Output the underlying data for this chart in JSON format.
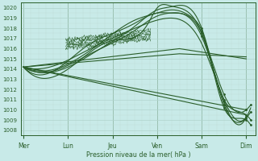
{
  "bg_color": "#c8eae8",
  "grid_major_color": "#b0d4cc",
  "grid_minor_color": "#c0dcd8",
  "line_color": "#2a5e2a",
  "xlabel": "Pression niveau de la mer( hPa )",
  "ylim": [
    1007.5,
    1020.5
  ],
  "xlim": [
    -0.05,
    5.2
  ],
  "yticks": [
    1008,
    1009,
    1010,
    1011,
    1012,
    1013,
    1014,
    1015,
    1016,
    1017,
    1018,
    1019,
    1020
  ],
  "day_positions": [
    0,
    1,
    2,
    3,
    4,
    5
  ],
  "day_labels": [
    "Mer",
    "Lun",
    "Jeu",
    "Ven",
    "Sam",
    "Dim"
  ],
  "ensemble_lines": [
    [
      0.0,
      1014.2,
      1.0,
      1014.0,
      2.0,
      1016.8,
      2.8,
      1018.5,
      3.0,
      1020.0,
      3.3,
      1020.2,
      4.0,
      1017.5,
      4.5,
      1011.0,
      5.0,
      1009.5,
      5.1,
      1009.0
    ],
    [
      0.0,
      1014.2,
      1.0,
      1014.2,
      1.8,
      1016.2,
      2.5,
      1018.2,
      3.0,
      1019.8,
      3.3,
      1020.1,
      4.0,
      1018.0,
      4.5,
      1010.5,
      5.0,
      1009.2,
      5.1,
      1009.8
    ],
    [
      0.0,
      1014.2,
      1.0,
      1014.5,
      1.8,
      1016.8,
      2.5,
      1018.8,
      3.0,
      1019.5,
      3.3,
      1019.8,
      3.8,
      1019.0,
      4.0,
      1017.8,
      4.5,
      1010.2,
      5.0,
      1009.0,
      5.1,
      1008.5
    ],
    [
      0.0,
      1014.2,
      1.0,
      1014.8,
      1.5,
      1016.5,
      2.0,
      1017.5,
      2.5,
      1018.5,
      3.0,
      1019.5,
      3.3,
      1019.5,
      4.0,
      1017.5,
      4.5,
      1011.5,
      5.0,
      1010.0,
      5.1,
      1010.5
    ],
    [
      0.0,
      1014.2,
      0.8,
      1014.0,
      1.5,
      1015.5,
      2.5,
      1017.8,
      3.0,
      1019.2,
      3.3,
      1019.5,
      4.0,
      1017.2,
      4.5,
      1010.8,
      5.0,
      1009.3
    ],
    [
      0.0,
      1014.2,
      5.0,
      1010.0
    ],
    [
      0.0,
      1014.2,
      5.0,
      1009.5
    ],
    [
      0.0,
      1014.2,
      3.5,
      1015.5,
      5.0,
      1015.2
    ],
    [
      0.0,
      1014.2,
      3.5,
      1016.0,
      5.0,
      1015.0
    ],
    [
      0.0,
      1014.2,
      0.8,
      1014.5,
      1.5,
      1016.0,
      2.5,
      1018.0,
      3.0,
      1018.8,
      3.3,
      1019.0,
      4.0,
      1016.5,
      4.5,
      1011.0,
      5.1,
      1010.2
    ]
  ],
  "jagged_segment": {
    "x_start": 0.9,
    "x_end": 2.9,
    "base_points": [
      [
        0.9,
        1016.2
      ],
      [
        1.1,
        1016.5
      ],
      [
        1.3,
        1016.8
      ],
      [
        1.5,
        1017.0
      ],
      [
        1.7,
        1017.2
      ],
      [
        1.9,
        1017.3
      ],
      [
        2.1,
        1017.4
      ],
      [
        2.3,
        1017.5
      ],
      [
        2.5,
        1017.6
      ],
      [
        2.7,
        1017.7
      ],
      [
        2.9,
        1017.8
      ]
    ]
  },
  "dot_marker_size": 2.0,
  "lw": 0.8
}
